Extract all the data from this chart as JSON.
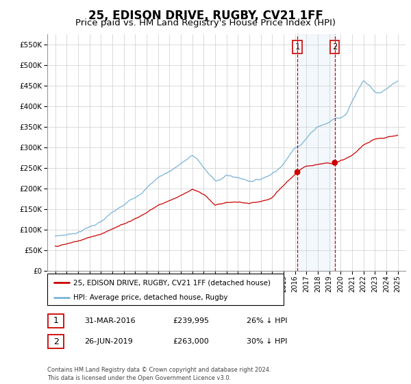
{
  "title": "25, EDISON DRIVE, RUGBY, CV21 1FF",
  "subtitle": "Price paid vs. HM Land Registry's House Price Index (HPI)",
  "ylim": [
    0,
    575000
  ],
  "yticks": [
    0,
    50000,
    100000,
    150000,
    200000,
    250000,
    300000,
    350000,
    400000,
    450000,
    500000,
    550000
  ],
  "ytick_labels": [
    "£0",
    "£50K",
    "£100K",
    "£150K",
    "£200K",
    "£250K",
    "£300K",
    "£350K",
    "£400K",
    "£450K",
    "£500K",
    "£550K"
  ],
  "hpi_color": "#7ab3d8",
  "price_color": "#cc0000",
  "vline_color": "#cc0000",
  "marker1_x": 2016.21,
  "marker2_x": 2019.49,
  "marker1_price": 239995,
  "marker2_price": 263000,
  "legend_line1": "25, EDISON DRIVE, RUGBY, CV21 1FF (detached house)",
  "legend_line2": "HPI: Average price, detached house, Rugby",
  "table_row1": [
    "1",
    "31-MAR-2016",
    "£239,995",
    "26% ↓ HPI"
  ],
  "table_row2": [
    "2",
    "26-JUN-2019",
    "£263,000",
    "30% ↓ HPI"
  ],
  "footer": "Contains HM Land Registry data © Crown copyright and database right 2024.\nThis data is licensed under the Open Government Licence v3.0.",
  "hpi_knots_x": [
    1995,
    1996,
    1997,
    1998,
    1999,
    2000,
    2001,
    2002,
    2003,
    2004,
    2005,
    2006,
    2007,
    2007.5,
    2008,
    2008.5,
    2009,
    2009.5,
    2010,
    2011,
    2012,
    2013,
    2014,
    2015,
    2016,
    2016.5,
    2017,
    2017.5,
    2018,
    2018.5,
    2019,
    2019.5,
    2020,
    2020.5,
    2021,
    2021.5,
    2022,
    2022.5,
    2023,
    2023.5,
    2024,
    2024.5,
    2025
  ],
  "hpi_knots_y": [
    85000,
    88000,
    95000,
    108000,
    120000,
    140000,
    155000,
    175000,
    200000,
    225000,
    240000,
    260000,
    278000,
    268000,
    248000,
    230000,
    215000,
    220000,
    228000,
    222000,
    215000,
    220000,
    235000,
    260000,
    300000,
    310000,
    325000,
    340000,
    355000,
    360000,
    365000,
    375000,
    375000,
    385000,
    420000,
    445000,
    470000,
    460000,
    445000,
    440000,
    448000,
    455000,
    462000
  ],
  "price_knots_x": [
    1995,
    1996,
    1997,
    1998,
    1999,
    2000,
    2001,
    2002,
    2003,
    2004,
    2005,
    2006,
    2007,
    2007.5,
    2008,
    2008.5,
    2009,
    2009.5,
    2010,
    2011,
    2012,
    2013,
    2013.5,
    2014,
    2015,
    2016,
    2016.21,
    2017,
    2018,
    2019,
    2019.49,
    2020,
    2021,
    2022,
    2022.5,
    2023,
    2024,
    2025
  ],
  "price_knots_y": [
    60000,
    65000,
    72000,
    80000,
    90000,
    105000,
    115000,
    130000,
    145000,
    163000,
    175000,
    188000,
    205000,
    198000,
    190000,
    178000,
    165000,
    168000,
    172000,
    172000,
    168000,
    170000,
    172000,
    178000,
    205000,
    232000,
    239995,
    250000,
    258000,
    262000,
    263000,
    268000,
    280000,
    305000,
    310000,
    320000,
    325000,
    330000
  ],
  "highlight_color": "#d0e4f5",
  "background_color": "#ffffff",
  "grid_color": "#cccccc",
  "title_fontsize": 12,
  "subtitle_fontsize": 9.5
}
